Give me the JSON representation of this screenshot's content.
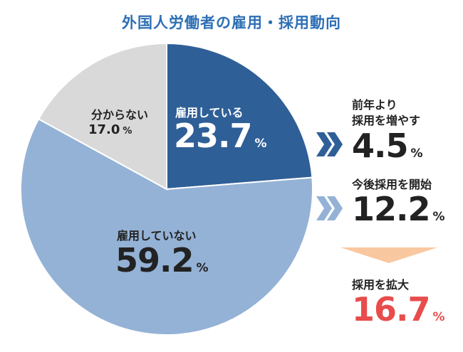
{
  "title": "外国人労働者の雇用・採用動向",
  "colors": {
    "title": "#2e6fb5",
    "employing": "#2f5f97",
    "not_employing": "#94b2d6",
    "unknown": "#d9d9d9",
    "chevron_dark": "#2f5f97",
    "chevron_light": "#94b2d6",
    "arrow": "#f9c8a0",
    "expand_value": "#e84c4c"
  },
  "chart_data": {
    "type": "pie",
    "title": "外国人労働者の雇用・採用動向",
    "slices": [
      {
        "label": "雇用している",
        "value": 23.7,
        "color": "#2f5f97"
      },
      {
        "label": "雇用していない",
        "value": 59.2,
        "color": "#94b2d6"
      },
      {
        "label": "分からない",
        "value": 17.0,
        "color": "#d9d9d9"
      }
    ],
    "unit": "%",
    "breakdown": [
      {
        "label": "前年より採用を増やす",
        "value": 4.5
      },
      {
        "label": "今後採用を開始",
        "value": 12.2
      },
      {
        "label": "採用を拡大",
        "value": 16.7
      }
    ]
  },
  "labels": {
    "employing_label": "雇用している",
    "employing_value": "23.7",
    "not_employing_label": "雇用していない",
    "not_employing_value": "59.2",
    "unknown_label": "分からない",
    "unknown_value": "17.0",
    "increase_label_1": "前年より",
    "increase_label_2": "採用を増やす",
    "increase_value": "4.5",
    "start_label": "今後採用を開始",
    "start_value": "12.2",
    "expand_label": "採用を拡大",
    "expand_value": "16.7",
    "unit": "%"
  }
}
